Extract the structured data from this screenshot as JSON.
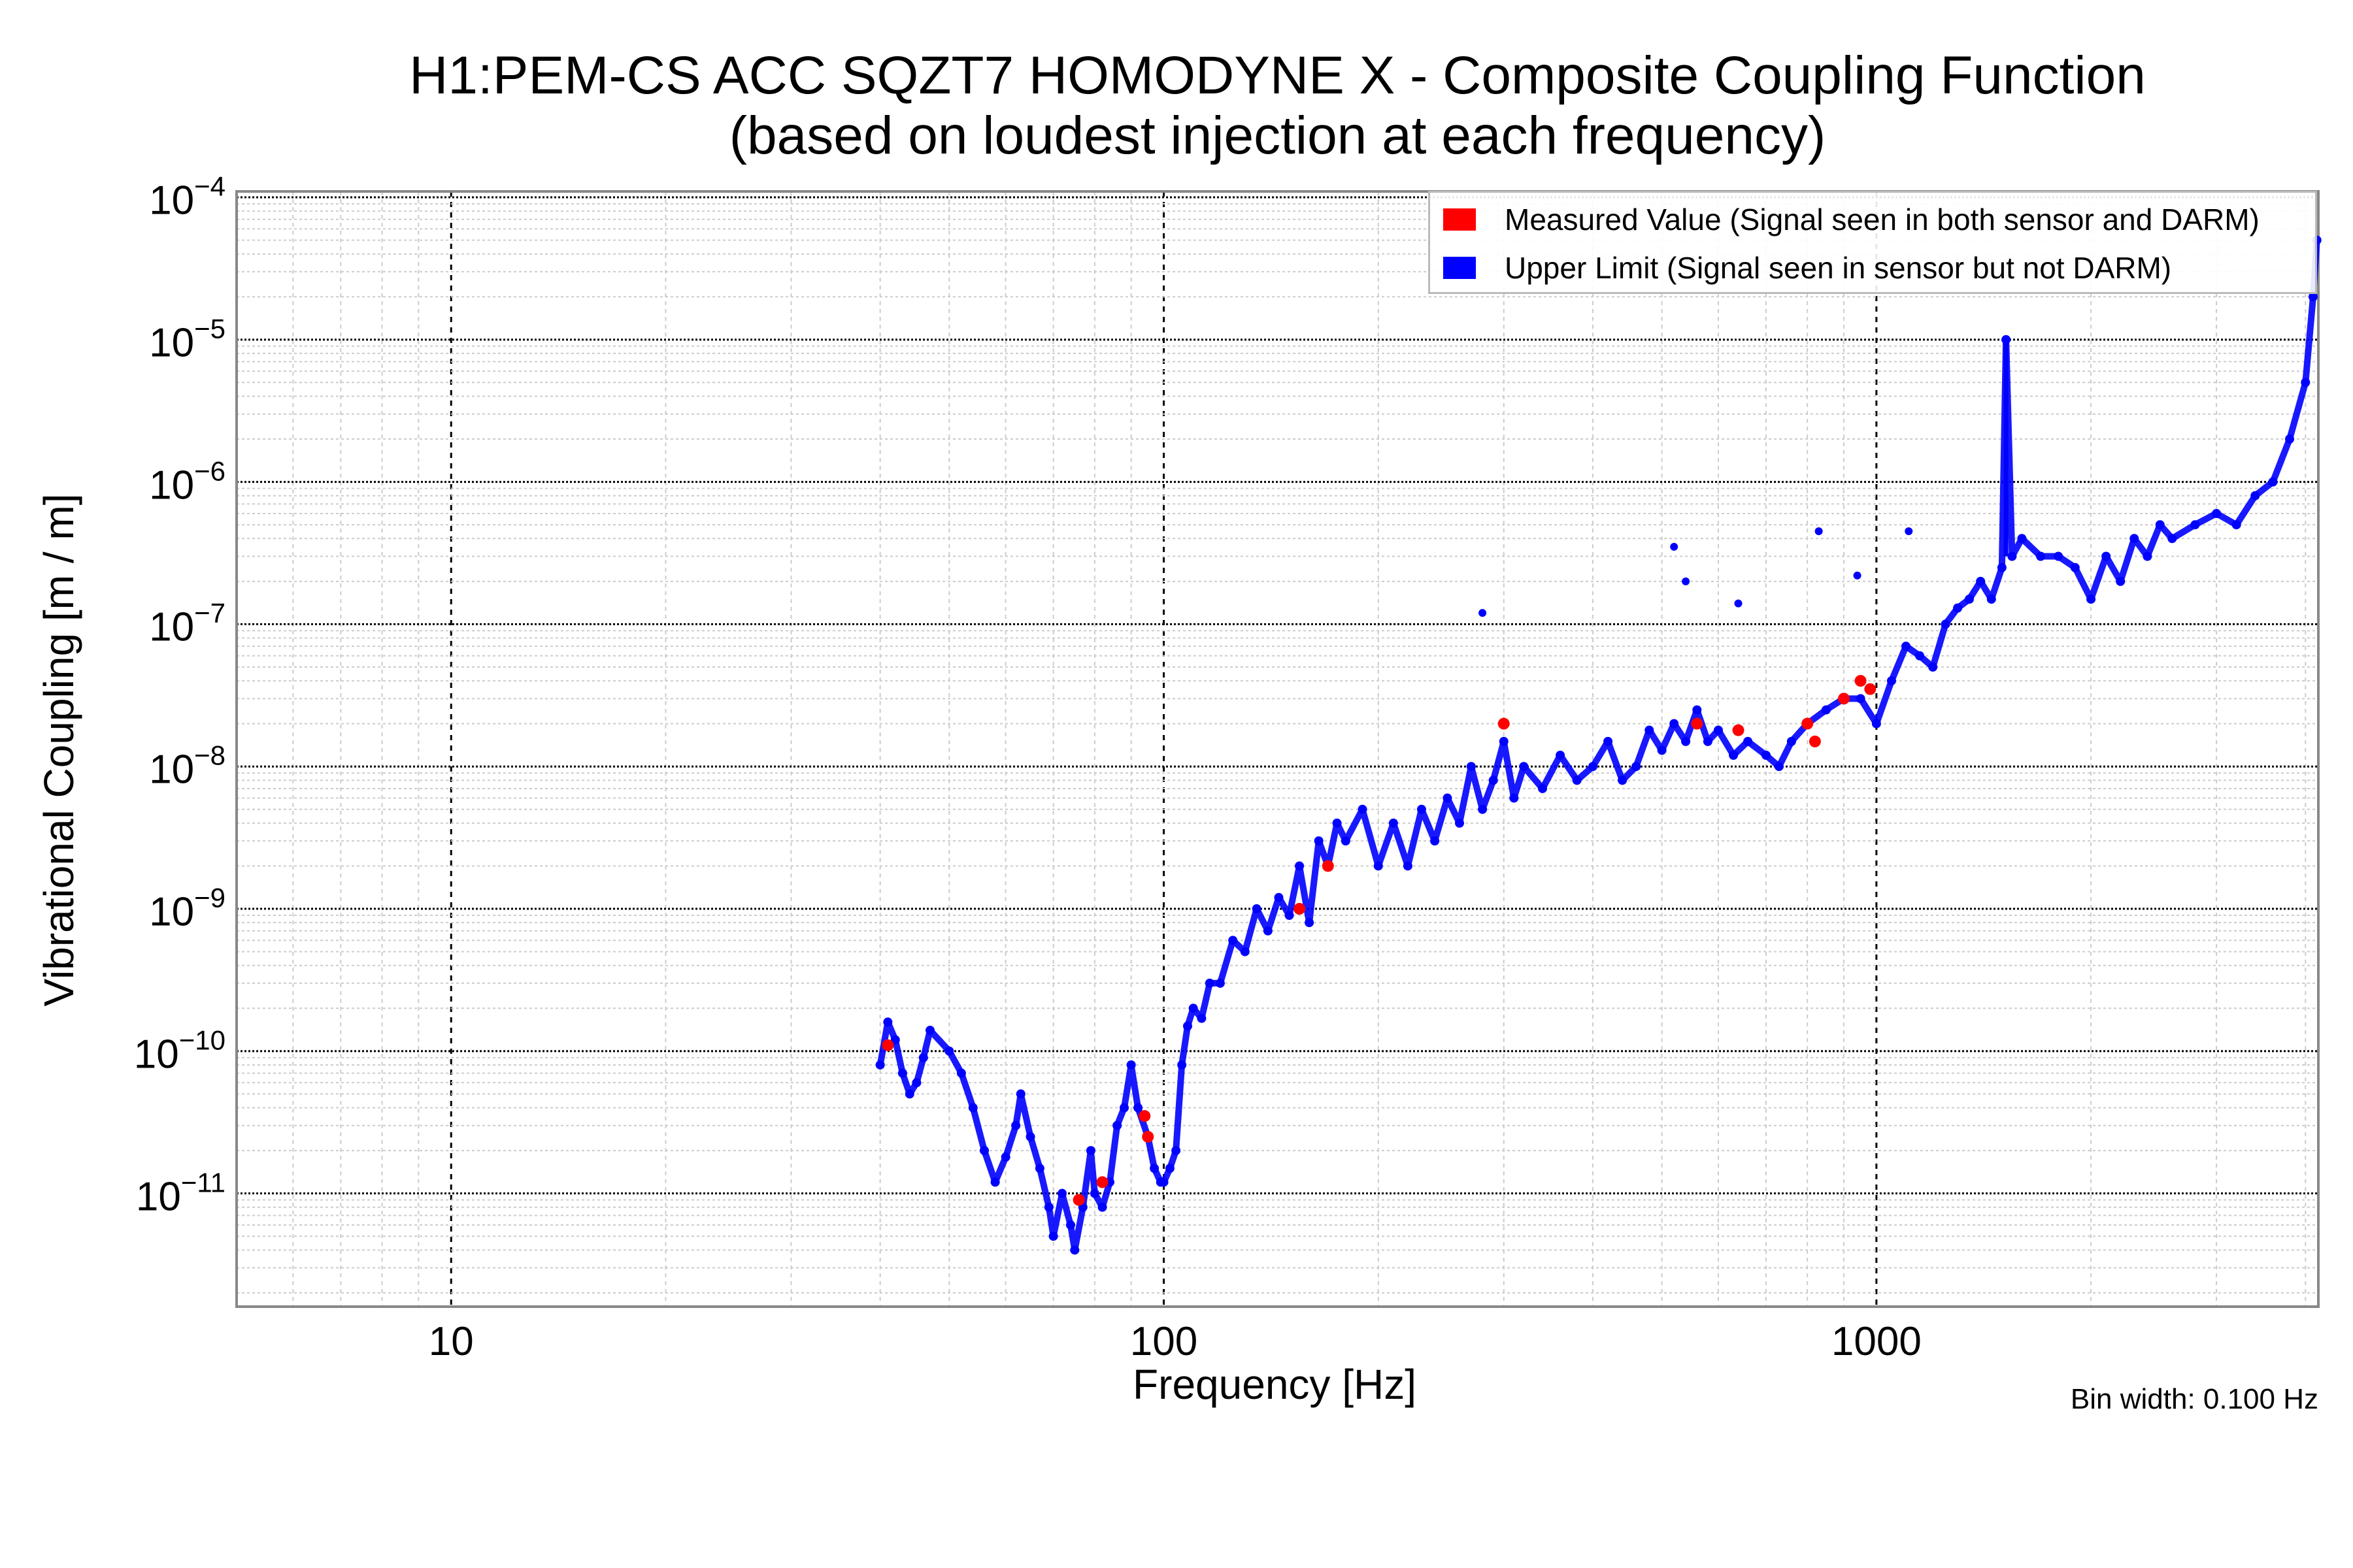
{
  "chart_data": {
    "type": "scatter",
    "title": "H1:PEM-CS ACC SQZT7 HOMODYNE X - Composite Coupling Function",
    "subtitle": "(based on loudest injection at each frequency)",
    "xlabel": "Frequency [Hz]",
    "ylabel": "Vibrational Coupling [m / m]",
    "xscale": "log",
    "yscale": "log",
    "xlim": [
      5,
      4170
    ],
    "ylim": [
      1.6e-12,
      0.00011
    ],
    "xticks": [
      10,
      100,
      1000
    ],
    "xtick_labels": [
      "10",
      "100",
      "1000"
    ],
    "yticks": [
      0.0001,
      1e-05,
      1e-06,
      1e-07,
      1e-08,
      1e-09,
      1e-10,
      1e-11
    ],
    "ytick_base": "10",
    "ytick_exponents": [
      "−4",
      "−5",
      "−6",
      "−7",
      "−8",
      "−9",
      "−10",
      "−11"
    ],
    "grid": true,
    "legend_position": "top-right",
    "annotation": "Bin width: 0.100 Hz",
    "series": [
      {
        "name": "Upper Limit (Signal seen in sensor but not DARM)",
        "color": "#0000ff",
        "points": [
          [
            40,
            8e-11
          ],
          [
            41,
            1.6e-10
          ],
          [
            42,
            1.2e-10
          ],
          [
            43,
            7e-11
          ],
          [
            44,
            5e-11
          ],
          [
            45,
            6e-11
          ],
          [
            46,
            9e-11
          ],
          [
            47,
            1.4e-10
          ],
          [
            50,
            1e-10
          ],
          [
            52,
            7e-11
          ],
          [
            54,
            4e-11
          ],
          [
            56,
            2e-11
          ],
          [
            58,
            1.2e-11
          ],
          [
            60,
            1.8e-11
          ],
          [
            62,
            3e-11
          ],
          [
            63,
            5e-11
          ],
          [
            65,
            2.5e-11
          ],
          [
            67,
            1.5e-11
          ],
          [
            69,
            8e-12
          ],
          [
            70,
            5e-12
          ],
          [
            72,
            1e-11
          ],
          [
            74,
            6e-12
          ],
          [
            75,
            4e-12
          ],
          [
            77,
            8e-12
          ],
          [
            79,
            2e-11
          ],
          [
            80,
            1e-11
          ],
          [
            82,
            8e-12
          ],
          [
            84,
            1.2e-11
          ],
          [
            86,
            3e-11
          ],
          [
            88,
            4e-11
          ],
          [
            90,
            8e-11
          ],
          [
            92,
            4e-11
          ],
          [
            95,
            2.5e-11
          ],
          [
            97,
            1.5e-11
          ],
          [
            99,
            1.2e-11
          ],
          [
            100,
            1.2e-11
          ],
          [
            102,
            1.5e-11
          ],
          [
            104,
            2e-11
          ],
          [
            106,
            8e-11
          ],
          [
            108,
            1.5e-10
          ],
          [
            110,
            2e-10
          ],
          [
            113,
            1.7e-10
          ],
          [
            116,
            3e-10
          ],
          [
            120,
            3e-10
          ],
          [
            125,
            6e-10
          ],
          [
            130,
            5e-10
          ],
          [
            135,
            1e-09
          ],
          [
            140,
            7e-10
          ],
          [
            145,
            1.2e-09
          ],
          [
            150,
            9e-10
          ],
          [
            155,
            2e-09
          ],
          [
            160,
            8e-10
          ],
          [
            165,
            3e-09
          ],
          [
            170,
            2e-09
          ],
          [
            175,
            4e-09
          ],
          [
            180,
            3e-09
          ],
          [
            190,
            5e-09
          ],
          [
            200,
            2e-09
          ],
          [
            210,
            4e-09
          ],
          [
            220,
            2e-09
          ],
          [
            230,
            5e-09
          ],
          [
            240,
            3e-09
          ],
          [
            250,
            6e-09
          ],
          [
            260,
            4e-09
          ],
          [
            270,
            1e-08
          ],
          [
            280,
            5e-09
          ],
          [
            290,
            8e-09
          ],
          [
            300,
            1.5e-08
          ],
          [
            310,
            6e-09
          ],
          [
            320,
            1e-08
          ],
          [
            340,
            7e-09
          ],
          [
            360,
            1.2e-08
          ],
          [
            380,
            8e-09
          ],
          [
            400,
            1e-08
          ],
          [
            420,
            1.5e-08
          ],
          [
            440,
            8e-09
          ],
          [
            460,
            1e-08
          ],
          [
            480,
            1.8e-08
          ],
          [
            500,
            1.3e-08
          ],
          [
            520,
            2e-08
          ],
          [
            540,
            1.5e-08
          ],
          [
            560,
            2.5e-08
          ],
          [
            580,
            1.5e-08
          ],
          [
            600,
            1.8e-08
          ],
          [
            630,
            1.2e-08
          ],
          [
            660,
            1.5e-08
          ],
          [
            700,
            1.2e-08
          ],
          [
            730,
            1e-08
          ],
          [
            760,
            1.5e-08
          ],
          [
            800,
            2e-08
          ],
          [
            850,
            2.5e-08
          ],
          [
            900,
            3e-08
          ],
          [
            950,
            3e-08
          ],
          [
            1000,
            2e-08
          ],
          [
            1050,
            4e-08
          ],
          [
            1100,
            7e-08
          ],
          [
            1150,
            6e-08
          ],
          [
            1200,
            5e-08
          ],
          [
            1250,
            1e-07
          ],
          [
            1300,
            1.3e-07
          ],
          [
            1350,
            1.5e-07
          ],
          [
            1400,
            2e-07
          ],
          [
            1450,
            1.5e-07
          ],
          [
            1500,
            2.5e-07
          ],
          [
            1520,
            1e-05
          ],
          [
            1550,
            3e-07
          ],
          [
            1600,
            4e-07
          ],
          [
            1700,
            3e-07
          ],
          [
            1800,
            3e-07
          ],
          [
            1900,
            2.5e-07
          ],
          [
            2000,
            1.5e-07
          ],
          [
            2100,
            3e-07
          ],
          [
            2200,
            2e-07
          ],
          [
            2300,
            4e-07
          ],
          [
            2400,
            3e-07
          ],
          [
            2500,
            5e-07
          ],
          [
            2600,
            4e-07
          ],
          [
            2800,
            5e-07
          ],
          [
            3000,
            6e-07
          ],
          [
            3200,
            5e-07
          ],
          [
            3400,
            8e-07
          ],
          [
            3600,
            1e-06
          ],
          [
            3800,
            2e-06
          ],
          [
            4000,
            5e-06
          ],
          [
            4100,
            2e-05
          ],
          [
            4150,
            5e-05
          ]
        ],
        "outliers": [
          [
            280,
            1.2e-07
          ],
          [
            520,
            3.5e-07
          ],
          [
            540,
            2e-07
          ],
          [
            640,
            1.4e-07
          ],
          [
            830,
            4.5e-07
          ],
          [
            940,
            2.2e-07
          ],
          [
            1110,
            4.5e-07
          ]
        ]
      },
      {
        "name": "Measured Value (Signal seen in both sensor and DARM)",
        "color": "#ff0000",
        "points": [
          [
            41,
            1.1e-10
          ],
          [
            76,
            9e-12
          ],
          [
            82,
            1.2e-11
          ],
          [
            94,
            3.5e-11
          ],
          [
            95,
            2.5e-11
          ],
          [
            155,
            1e-09
          ],
          [
            170,
            2e-09
          ],
          [
            300,
            2e-08
          ],
          [
            560,
            2e-08
          ],
          [
            640,
            1.8e-08
          ],
          [
            800,
            2e-08
          ],
          [
            820,
            1.5e-08
          ],
          [
            900,
            3e-08
          ],
          [
            950,
            4e-08
          ],
          [
            980,
            3.5e-08
          ]
        ]
      }
    ]
  }
}
